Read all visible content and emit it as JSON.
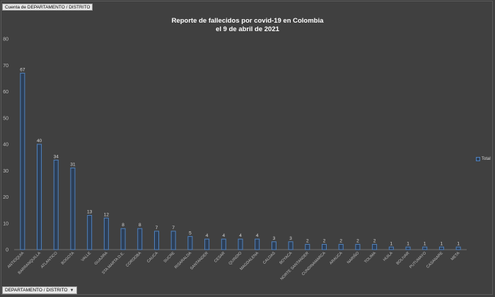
{
  "pivot": {
    "value_field": "Cuenta de DEPARTAMENTO / DISTRITO",
    "axis_field": "DEPARTAMENTO / DISTRITO",
    "axis_arrow": "▼"
  },
  "chart_data": {
    "type": "bar",
    "title_line1": "Reporte de fallecidos por covid-19 en Colombia",
    "title_line2": "el 9 de abril de 2021",
    "categories": [
      "ANTIOQUIA",
      "BARRANQUILLA",
      "ATLANTICO",
      "BOGOTA",
      "VALLE",
      "GUAJIRA",
      "STA MARTA D.E.",
      "CORDOBA",
      "CAUCA",
      "SUCRE",
      "RISARALDA",
      "SANTANDER",
      "CESAR",
      "QUINDIO",
      "MAGDALENA",
      "CALDAS",
      "BOYACA",
      "NORTE SANTANDER",
      "CUNDINAMARCA",
      "ARAUCA",
      "NARIÑO",
      "TOLIMA",
      "HUILA",
      "BOLIVAR",
      "PUTUMAYO",
      "CASANARE",
      "META"
    ],
    "series": [
      {
        "name": "Total",
        "values": [
          67,
          40,
          34,
          31,
          13,
          12,
          8,
          8,
          7,
          7,
          5,
          4,
          4,
          4,
          4,
          3,
          3,
          2,
          2,
          2,
          2,
          2,
          1,
          1,
          1,
          1,
          1
        ]
      }
    ],
    "ylim": [
      0,
      80
    ],
    "yticks": [
      0,
      10,
      20,
      30,
      40,
      50,
      60,
      70,
      80
    ],
    "grid": false,
    "legend": "right",
    "colors": {
      "bar_stroke": "#4f81bd",
      "bar_fill": "#2d3e55"
    }
  }
}
